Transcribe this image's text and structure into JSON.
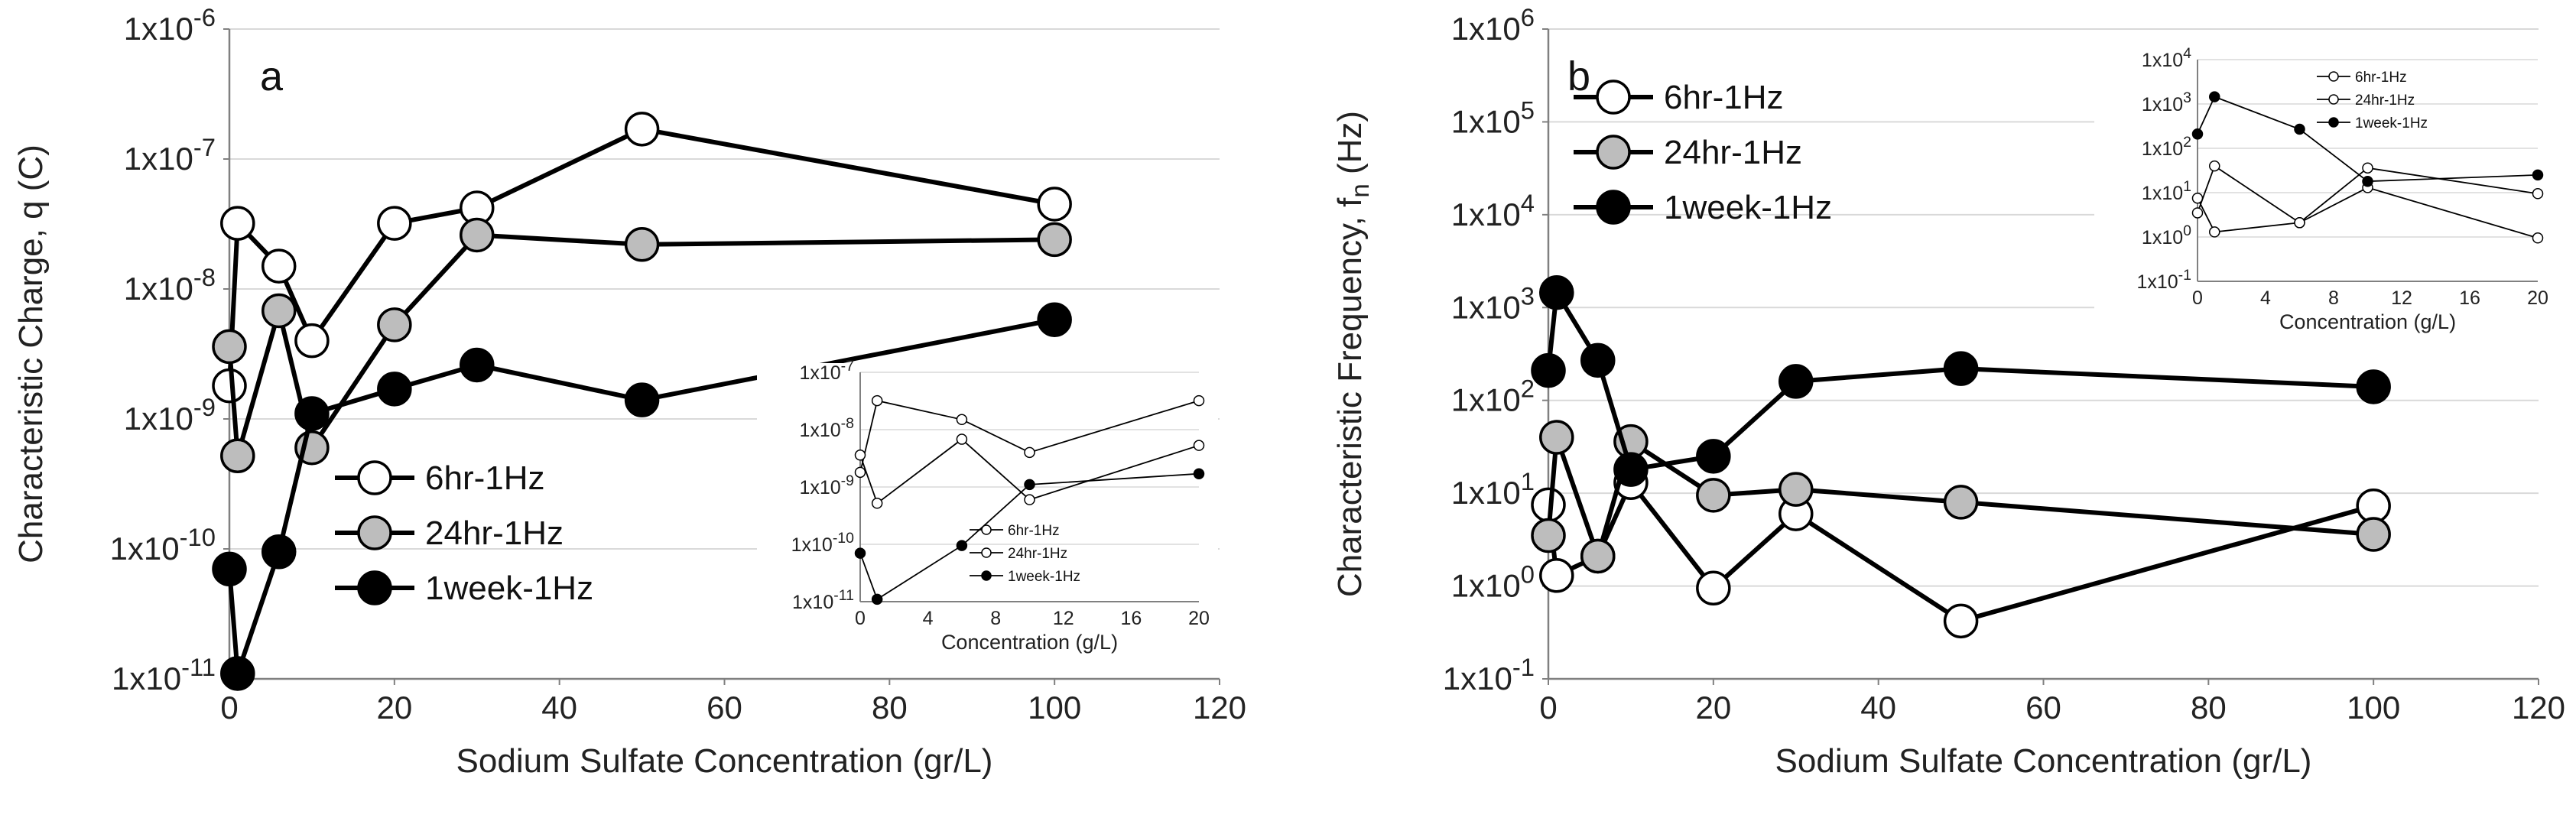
{
  "chart_data": [
    {
      "type": "scatter",
      "id": "a",
      "panel_label": "a",
      "xlabel": "Sodium Sulfate Concentration (gr/L)",
      "ylabel": "Characteristic Charge, q (C)",
      "ylabel_sub": "",
      "yscale": "log",
      "xlim": [
        0,
        120
      ],
      "ylim_exp": [
        -11,
        -6
      ],
      "xticks": [
        "0",
        "20",
        "40",
        "60",
        "80",
        "100",
        "120"
      ],
      "yticks": [
        "1x10-11",
        "1x10-10",
        "1x10-9",
        "1x10-8",
        "1x10-7",
        "1x10-6"
      ],
      "legend_position": "lower-middle",
      "series": [
        {
          "name": "6hr-1Hz",
          "fill": "#ffffff",
          "x": [
            0,
            1,
            6,
            10,
            20,
            30,
            50,
            100
          ],
          "y": [
            1.8e-09,
            3.2e-08,
            1.5e-08,
            4e-09,
            3.2e-08,
            4.2e-08,
            1.7e-07,
            4.5e-08
          ]
        },
        {
          "name": "24hr-1Hz",
          "fill": "#bdbdbd",
          "x": [
            0,
            1,
            6,
            10,
            20,
            30,
            50,
            100
          ],
          "y": [
            3.6e-09,
            5.2e-10,
            6.8e-09,
            6e-10,
            5.3e-09,
            2.6e-08,
            2.2e-08,
            2.4e-08
          ]
        },
        {
          "name": "1week-1Hz",
          "fill": "#000000",
          "x": [
            0,
            1,
            6,
            10,
            20,
            30,
            50,
            100
          ],
          "y": [
            7e-11,
            1.1e-11,
            9.5e-11,
            1.1e-09,
            1.7e-09,
            2.6e-09,
            1.4e-09,
            5.8e-09
          ]
        }
      ],
      "inset": {
        "xlabel": "Concentration (g/L)",
        "xlim": [
          0,
          20
        ],
        "ylim_exp": [
          -11,
          -7
        ],
        "xticks": [
          "0",
          "4",
          "8",
          "12",
          "16",
          "20"
        ],
        "yticks": [
          "1x10-11",
          "1x10-10",
          "1x10-9",
          "1x10-8",
          "1x10-7"
        ],
        "series": [
          {
            "name": "6hr-1Hz",
            "fill": "#ffffff",
            "x": [
              0,
              1,
              6,
              10,
              20
            ],
            "y": [
              1.8e-09,
              3.2e-08,
              1.5e-08,
              4e-09,
              3.2e-08
            ]
          },
          {
            "name": "24hr-1Hz",
            "fill": "#ffffff",
            "x": [
              0,
              1,
              6,
              10,
              20
            ],
            "y": [
              3.6e-09,
              5.2e-10,
              6.8e-09,
              6e-10,
              5.3e-09
            ]
          },
          {
            "name": "1week-1Hz",
            "fill": "#000000",
            "x": [
              0,
              1,
              6,
              10,
              20
            ],
            "y": [
              7e-11,
              1.1e-11,
              9.5e-11,
              1.1e-09,
              1.7e-09
            ]
          }
        ]
      }
    },
    {
      "type": "scatter",
      "id": "b",
      "panel_label": "b",
      "xlabel": "Sodium Sulfate Concentration (gr/L)",
      "ylabel": "Characteristic Frequency, f",
      "ylabel_sub": "n",
      "ylabel_unit": " (Hz)",
      "yscale": "log",
      "xlim": [
        0,
        120
      ],
      "ylim_exp": [
        -1,
        6
      ],
      "xticks": [
        "0",
        "20",
        "40",
        "60",
        "80",
        "100",
        "120"
      ],
      "yticks": [
        "1x10-1",
        "1x100",
        "1x101",
        "1x102",
        "1x103",
        "1x104",
        "1x105",
        "1x106"
      ],
      "legend_position": "top-left",
      "series": [
        {
          "name": "6hr-1Hz",
          "fill": "#ffffff",
          "x": [
            0,
            1,
            6,
            10,
            20,
            30,
            50,
            100
          ],
          "y": [
            7.5,
            1.3,
            2.1,
            13,
            0.95,
            6,
            0.42,
            7.3
          ]
        },
        {
          "name": "24hr-1Hz",
          "fill": "#bdbdbd",
          "x": [
            0,
            1,
            6,
            10,
            20,
            30,
            50,
            100
          ],
          "y": [
            3.5,
            40,
            2.1,
            36,
            9.5,
            11,
            8,
            3.6
          ]
        },
        {
          "name": "1week-1Hz",
          "fill": "#000000",
          "x": [
            0,
            1,
            6,
            10,
            20,
            30,
            50,
            100
          ],
          "y": [
            210,
            1450,
            270,
            18,
            25,
            160,
            220,
            140
          ]
        }
      ],
      "inset": {
        "xlabel": "Concentration (g/L)",
        "xlim": [
          0,
          20
        ],
        "ylim_exp": [
          -1,
          4
        ],
        "xticks": [
          "0",
          "4",
          "8",
          "12",
          "16",
          "20"
        ],
        "yticks": [
          "1x10-1",
          "1x100",
          "1x101",
          "1x102",
          "1x103",
          "1x104"
        ],
        "series": [
          {
            "name": "6hr-1Hz",
            "fill": "#ffffff",
            "x": [
              0,
              1,
              6,
              10,
              20
            ],
            "y": [
              7.5,
              1.3,
              2.1,
              13,
              0.95
            ]
          },
          {
            "name": "24hr-1Hz",
            "fill": "#ffffff",
            "x": [
              0,
              1,
              6,
              10,
              20
            ],
            "y": [
              3.5,
              40,
              2.1,
              36,
              9.5
            ]
          },
          {
            "name": "1week-1Hz",
            "fill": "#000000",
            "x": [
              0,
              1,
              6,
              10,
              20
            ],
            "y": [
              210,
              1450,
              270,
              18,
              25
            ]
          }
        ]
      }
    }
  ]
}
